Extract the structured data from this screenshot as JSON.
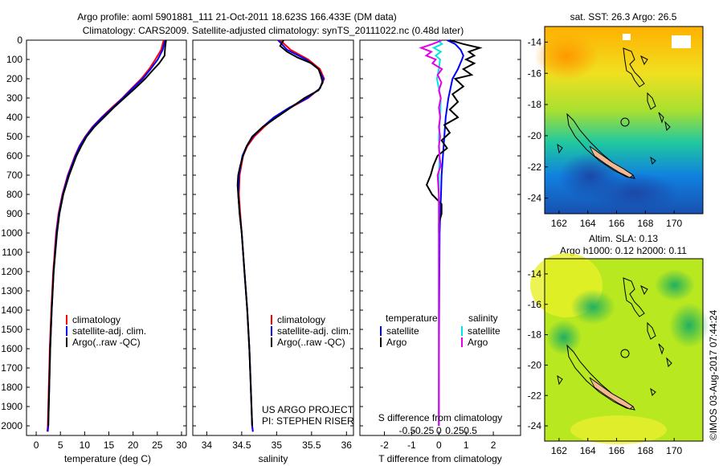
{
  "titles": {
    "line1": "Argo profile: aoml 5901881_111 21-Oct-2011 18.623S 166.433E (DM data)",
    "line2": "Climatology: CARS2009. Satellite-adjusted climatology: synTS_20111022.nc (0.48d later)"
  },
  "colors": {
    "climatology": "#ff0000",
    "satellite": "#0000ff",
    "argo": "#000000",
    "s_satellite": "#00e5e5",
    "s_argo": "#e600e6"
  },
  "depth_ticks": [
    0,
    100,
    200,
    300,
    400,
    500,
    600,
    700,
    800,
    900,
    1000,
    1100,
    1200,
    1300,
    1400,
    1500,
    1600,
    1700,
    1800,
    1900,
    2000
  ],
  "chart_data": [
    {
      "type": "line",
      "xlabel": "temperature (deg C)",
      "xlim": [
        -2,
        31
      ],
      "ylim": [
        2050,
        0
      ],
      "xticks": [
        0,
        5,
        10,
        15,
        20,
        25,
        30
      ],
      "legend": [
        "climatology",
        "satellite-adj. clim.",
        "Argo(..raw -QC)"
      ],
      "series": [
        {
          "name": "climatology",
          "depth": [
            0,
            50,
            100,
            150,
            200,
            250,
            300,
            350,
            400,
            450,
            500,
            550,
            600,
            700,
            800,
            900,
            1000,
            1200,
            1400,
            1600,
            1800,
            2000,
            2030
          ],
          "values": [
            26.3,
            25.8,
            24.6,
            23.3,
            21.7,
            19.7,
            17.8,
            15.6,
            13.5,
            11.6,
            10.1,
            8.9,
            8.0,
            6.5,
            5.4,
            4.6,
            4.1,
            3.5,
            3.1,
            2.8,
            2.6,
            2.4,
            2.3
          ]
        },
        {
          "name": "satellite-adj. clim.",
          "depth": [
            0,
            50,
            100,
            150,
            200,
            250,
            300,
            350,
            400,
            450,
            500,
            550,
            600,
            700,
            800,
            900,
            1000,
            1200,
            1400,
            1600,
            1800,
            2000,
            2030
          ],
          "values": [
            26.6,
            26.1,
            25.1,
            23.6,
            22.0,
            19.9,
            17.9,
            15.8,
            13.6,
            11.7,
            10.2,
            9.0,
            8.1,
            6.6,
            5.5,
            4.7,
            4.2,
            3.6,
            3.2,
            2.9,
            2.7,
            2.5,
            2.4
          ]
        },
        {
          "name": "Argo(..raw -QC)",
          "depth": [
            0,
            40,
            80,
            120,
            160,
            200,
            250,
            300,
            350,
            400,
            450,
            500,
            550,
            600,
            700,
            800,
            900,
            1000,
            1200,
            1400,
            1600,
            1800,
            2000
          ],
          "values": [
            26.8,
            26.6,
            26.5,
            25.4,
            23.9,
            22.5,
            20.4,
            18.2,
            16.0,
            14.0,
            12.0,
            10.4,
            9.3,
            8.3,
            6.8,
            5.6,
            4.8,
            4.3,
            3.6,
            3.2,
            2.9,
            2.7,
            2.5
          ]
        }
      ]
    },
    {
      "type": "line",
      "xlabel": "salinity",
      "xlim": [
        33.8,
        36.1
      ],
      "ylim": [
        2050,
        0
      ],
      "xticks": [
        34,
        34.5,
        35,
        35.5,
        36
      ],
      "legend": [
        "climatology",
        "satellite-adj. clim.",
        "Argo(..raw -QC)"
      ],
      "annotation": [
        "US ARGO PROJECT",
        "PI: STEPHEN RISER"
      ],
      "series": [
        {
          "name": "climatology",
          "depth": [
            0,
            50,
            100,
            150,
            200,
            250,
            300,
            350,
            400,
            450,
            500,
            550,
            600,
            700,
            800,
            900,
            1000,
            1200,
            1400,
            1600,
            1800,
            2000,
            2030
          ],
          "values": [
            35.05,
            35.2,
            35.45,
            35.62,
            35.68,
            35.62,
            35.45,
            35.2,
            34.98,
            34.82,
            34.68,
            34.58,
            34.52,
            34.47,
            34.46,
            34.48,
            34.5,
            34.54,
            34.58,
            34.61,
            34.63,
            34.65,
            34.66
          ]
        },
        {
          "name": "satellite-adj. clim.",
          "depth": [
            0,
            50,
            100,
            150,
            200,
            250,
            300,
            350,
            400,
            450,
            500,
            550,
            600,
            700,
            800,
            900,
            1000,
            1200,
            1400,
            1600,
            1800,
            2000,
            2030
          ],
          "values": [
            35.02,
            35.15,
            35.42,
            35.6,
            35.67,
            35.62,
            35.44,
            35.18,
            34.96,
            34.8,
            34.66,
            34.57,
            34.51,
            34.46,
            34.45,
            34.47,
            34.5,
            34.54,
            34.58,
            34.61,
            34.63,
            34.65,
            34.66
          ]
        },
        {
          "name": "Argo(..raw -QC)",
          "depth": [
            0,
            30,
            60,
            90,
            120,
            150,
            180,
            220,
            260,
            300,
            350,
            400,
            450,
            500,
            550,
            600,
            650,
            700,
            750,
            800,
            900,
            1000,
            1200,
            1400,
            1600,
            1800,
            2000
          ],
          "values": [
            35.1,
            35.05,
            35.15,
            35.3,
            35.5,
            35.6,
            35.63,
            35.66,
            35.6,
            35.4,
            35.2,
            35.0,
            34.8,
            34.65,
            34.57,
            34.52,
            34.48,
            34.45,
            34.44,
            34.45,
            34.47,
            34.5,
            34.54,
            34.58,
            34.61,
            34.63,
            34.65
          ]
        }
      ]
    },
    {
      "type": "line",
      "xlabel": "T difference from climatology",
      "xlabel_top": "S difference from climatology",
      "xlim": [
        -2.9,
        3.0
      ],
      "ylim": [
        2050,
        0
      ],
      "xticks": [
        -2,
        -1,
        0,
        1,
        2
      ],
      "xticks_top": [
        -0.5,
        -0.25,
        0,
        0.25,
        0.5
      ],
      "legend_groups": [
        {
          "title": "temperature",
          "items": [
            "satellite",
            "Argo"
          ]
        },
        {
          "title": "salinity",
          "items": [
            "satellite",
            "Argo"
          ]
        }
      ],
      "series": [
        {
          "name": "T satellite",
          "depth": [
            0,
            20,
            50,
            80,
            100,
            150,
            200,
            300,
            400,
            500,
            600,
            700,
            800,
            900,
            1000,
            1200,
            1500,
            2000
          ],
          "values": [
            0.3,
            0.6,
            0.8,
            0.9,
            0.85,
            0.7,
            0.5,
            0.35,
            0.25,
            0.2,
            0.15,
            0.1,
            0.08,
            0.05,
            0.03,
            0.02,
            0.01,
            0.0
          ]
        },
        {
          "name": "T Argo",
          "depth": [
            0,
            20,
            40,
            60,
            80,
            100,
            120,
            150,
            180,
            200,
            240,
            280,
            320,
            360,
            400,
            440,
            480,
            520,
            560,
            600,
            650,
            700,
            750,
            800,
            850,
            900,
            950,
            1000
          ],
          "values": [
            0.4,
            0.9,
            1.5,
            1.1,
            1.3,
            1.0,
            1.3,
            0.9,
            1.2,
            0.6,
            0.9,
            0.5,
            0.7,
            0.4,
            0.7,
            0.2,
            0.4,
            0.1,
            0.3,
            -0.05,
            -0.2,
            -0.3,
            -0.45,
            -0.25,
            0.1,
            0.1,
            0.0,
            0.0
          ]
        },
        {
          "name": "S satellite",
          "depth": [
            0,
            20,
            40,
            60,
            80,
            100,
            150,
            200,
            300,
            400,
            500,
            600,
            700,
            800,
            1000,
            1500,
            2000
          ],
          "values": [
            -0.02,
            0.05,
            -0.08,
            0.03,
            -0.05,
            0.02,
            0.0,
            -0.03,
            0.03,
            0.02,
            0.0,
            0.01,
            0.0,
            0.0,
            0.0,
            0.0,
            0.0
          ]
        },
        {
          "name": "S Argo",
          "depth": [
            0,
            20,
            40,
            60,
            80,
            100,
            120,
            150,
            180,
            220,
            260,
            300,
            350,
            400,
            450,
            500,
            550,
            600,
            650,
            700,
            800,
            900,
            1000,
            1200,
            1500,
            2000
          ],
          "values": [
            0.05,
            -0.1,
            -0.28,
            -0.12,
            -0.2,
            -0.05,
            -0.1,
            0.05,
            -0.02,
            0.04,
            0.0,
            0.03,
            0.0,
            0.02,
            0.0,
            0.02,
            0.0,
            0.01,
            0.03,
            -0.02,
            0.0,
            0.0,
            0.0,
            0.0,
            0.0,
            0.0
          ]
        }
      ]
    },
    {
      "type": "heatmap",
      "title": "sat. SST: 26.3 Argo: 26.5",
      "xticks": [
        162,
        164,
        166,
        168,
        170
      ],
      "yticks": [
        -14,
        -16,
        -18,
        -20,
        -22,
        -24
      ],
      "xlim": [
        161,
        172
      ],
      "ylim": [
        -25,
        -13
      ]
    },
    {
      "type": "heatmap",
      "title_lines": [
        "Altim. SLA: 0.13",
        "Argo h1000: 0.12 h2000: 0.11"
      ],
      "xticks": [
        162,
        164,
        166,
        168,
        170
      ],
      "yticks": [
        -14,
        -16,
        -18,
        -20,
        -22,
        -24
      ],
      "xlim": [
        161,
        172
      ],
      "ylim": [
        -25,
        -13
      ]
    }
  ],
  "side_stamp": "©IMOS 03-Aug-2017 07:44:24"
}
